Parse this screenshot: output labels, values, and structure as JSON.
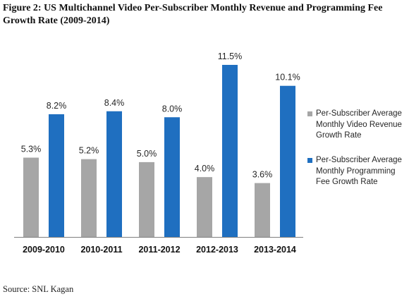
{
  "title": "Figure 2: US Multichannel Video Per-Subscriber Monthly Revenue and Programming Fee Growth Rate (2009-2014)",
  "source": "Source: SNL Kagan",
  "colors": {
    "revenue": "#a6a6a6",
    "programming": "#1f6fc0",
    "axis": "#7f7f7f"
  },
  "chart_data": {
    "type": "bar",
    "categories": [
      "2009-2010",
      "2010-2011",
      "2011-2012",
      "2012-2013",
      "2013-2014"
    ],
    "series": [
      {
        "name": "Per-Subscriber Average Monthly Video Revenue Growth Rate",
        "values": [
          5.3,
          5.2,
          5.0,
          4.0,
          3.6
        ],
        "labels": [
          "5.3%",
          "5.2%",
          "5.0%",
          "4.0%",
          "3.6%"
        ],
        "color": "#a6a6a6"
      },
      {
        "name": "Per-Subscriber Average Monthly Programming Fee Growth Rate",
        "values": [
          8.2,
          8.4,
          8.0,
          11.5,
          10.1
        ],
        "labels": [
          "8.2%",
          "8.4%",
          "8.0%",
          "11.5%",
          "10.1%"
        ],
        "color": "#1f6fc0"
      }
    ],
    "ylim": [
      0,
      11.5
    ],
    "grid": false,
    "legend": "right"
  }
}
